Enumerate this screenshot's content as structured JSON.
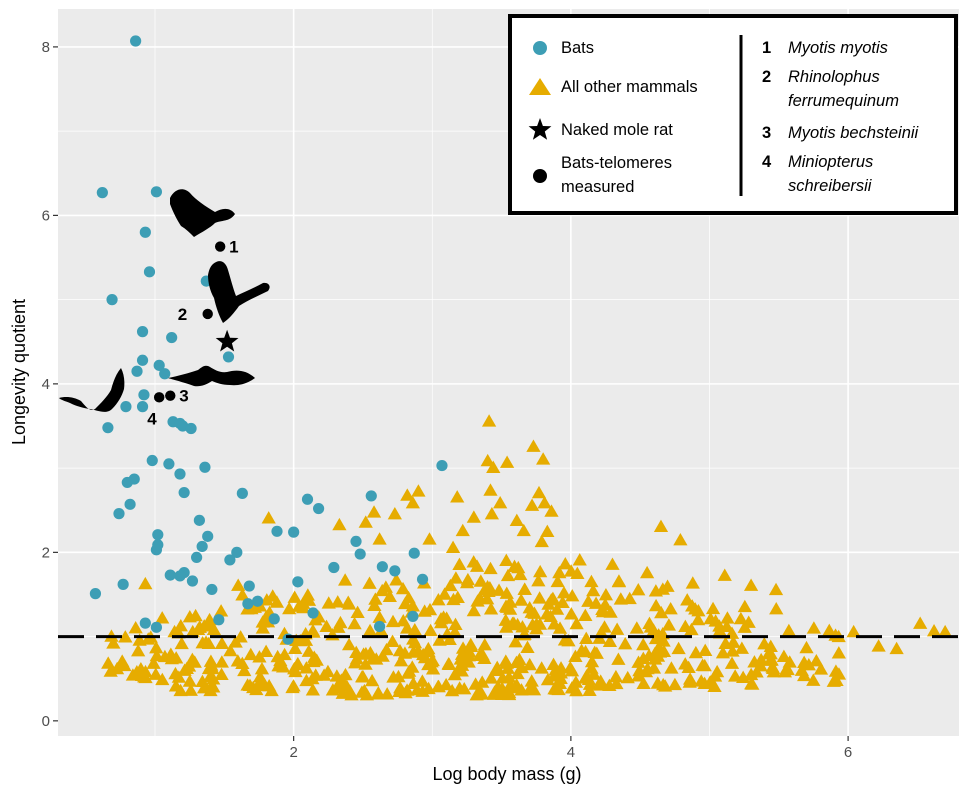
{
  "colors": {
    "panel": "#ebebeb",
    "grid_major": "#ffffff",
    "bats": "#3d9eb5",
    "mammals": "#e6ac00",
    "marker": "#000000"
  },
  "chart_data": {
    "type": "scatter",
    "xlabel": "Log body mass (g)",
    "ylabel": "Longevity quotient",
    "xlim": [
      0.3,
      6.8
    ],
    "ylim": [
      -0.18,
      8.45
    ],
    "x_ticks": [
      2,
      4,
      6
    ],
    "y_ticks": [
      0,
      2,
      4,
      6,
      8
    ],
    "x_tick_labels": [
      "2",
      "4",
      "6"
    ],
    "y_tick_labels": [
      "0",
      "2",
      "4",
      "6",
      "8"
    ],
    "grid": true,
    "reference_line": {
      "y": 1,
      "style": "dashed"
    },
    "legend": {
      "placement": "top-right",
      "entries": [
        {
          "label": "Bats",
          "marker": "circle",
          "color": "#3d9eb5"
        },
        {
          "label": "All other mammals",
          "marker": "triangle",
          "color": "#e6ac00"
        },
        {
          "label": "Naked mole rat",
          "marker": "star",
          "color": "#000000"
        },
        {
          "label": "Bats-telomeres measured",
          "lines": [
            "Bats-telomeres",
            "measured"
          ],
          "marker": "dot",
          "color": "#000000"
        }
      ],
      "species": [
        {
          "num": "1",
          "lines": [
            "Myotis myotis"
          ]
        },
        {
          "num": "2",
          "lines": [
            "Rhinolophus",
            "ferrumequinum"
          ]
        },
        {
          "num": "3",
          "lines": [
            "Myotis bechsteinii"
          ]
        },
        {
          "num": "4",
          "lines": [
            "Miniopterus",
            "schreibersii"
          ]
        }
      ]
    },
    "series": [
      {
        "name": "Bats",
        "marker": "circle",
        "points": [
          [
            0.86,
            8.07
          ],
          [
            0.62,
            6.27
          ],
          [
            1.01,
            6.28
          ],
          [
            0.93,
            5.8
          ],
          [
            0.96,
            5.33
          ],
          [
            0.69,
            5.0
          ],
          [
            0.91,
            4.62
          ],
          [
            1.12,
            4.55
          ],
          [
            0.91,
            4.28
          ],
          [
            1.03,
            4.22
          ],
          [
            0.87,
            4.15
          ],
          [
            1.07,
            4.12
          ],
          [
            1.37,
            5.22
          ],
          [
            1.53,
            4.32
          ],
          [
            0.92,
            3.87
          ],
          [
            1.13,
            3.55
          ],
          [
            1.18,
            3.53
          ],
          [
            1.2,
            3.5
          ],
          [
            1.26,
            3.47
          ],
          [
            0.79,
            3.73
          ],
          [
            0.91,
            3.73
          ],
          [
            0.66,
            3.48
          ],
          [
            0.98,
            3.09
          ],
          [
            1.1,
            3.05
          ],
          [
            1.36,
            3.01
          ],
          [
            1.18,
            2.93
          ],
          [
            0.85,
            2.87
          ],
          [
            0.8,
            2.83
          ],
          [
            1.21,
            2.71
          ],
          [
            1.63,
            2.7
          ],
          [
            0.82,
            2.57
          ],
          [
            0.74,
            2.46
          ],
          [
            1.32,
            2.38
          ],
          [
            1.02,
            2.21
          ],
          [
            1.38,
            2.19
          ],
          [
            1.02,
            2.09
          ],
          [
            1.01,
            2.03
          ],
          [
            1.34,
            2.07
          ],
          [
            1.59,
            2.0
          ],
          [
            1.54,
            1.91
          ],
          [
            1.3,
            1.94
          ],
          [
            1.88,
            2.25
          ],
          [
            2.0,
            2.24
          ],
          [
            2.1,
            2.63
          ],
          [
            2.18,
            2.52
          ],
          [
            1.21,
            1.76
          ],
          [
            1.18,
            1.72
          ],
          [
            1.11,
            1.73
          ],
          [
            1.27,
            1.66
          ],
          [
            1.68,
            1.6
          ],
          [
            1.41,
            1.56
          ],
          [
            0.57,
            1.51
          ],
          [
            0.77,
            1.62
          ],
          [
            2.03,
            1.65
          ],
          [
            1.46,
            1.2
          ],
          [
            0.93,
            1.16
          ],
          [
            1.01,
            1.11
          ],
          [
            1.86,
            1.21
          ],
          [
            2.29,
            1.82
          ],
          [
            2.45,
            2.13
          ],
          [
            2.56,
            2.67
          ],
          [
            2.48,
            1.98
          ],
          [
            2.64,
            1.83
          ],
          [
            2.73,
            1.78
          ],
          [
            2.87,
            1.99
          ],
          [
            2.93,
            1.68
          ],
          [
            2.62,
            1.12
          ],
          [
            3.07,
            3.03
          ],
          [
            1.67,
            1.39
          ],
          [
            1.74,
            1.42
          ],
          [
            1.96,
            0.97
          ],
          [
            2.14,
            1.28
          ],
          [
            2.86,
            1.24
          ]
        ]
      },
      {
        "name": "All other mammals",
        "marker": "triangle",
        "groups": [
          {
            "xmin": 0.62,
            "xmax": 1.0,
            "ymin": 0.45,
            "ymax": 1.1,
            "n": 22
          },
          {
            "xmin": 1.0,
            "xmax": 1.6,
            "ymin": 0.35,
            "ymax": 1.3,
            "n": 55
          },
          {
            "xmin": 1.6,
            "xmax": 2.3,
            "ymin": 0.35,
            "ymax": 1.5,
            "n": 75
          },
          {
            "xmin": 2.3,
            "xmax": 3.0,
            "ymin": 0.3,
            "ymax": 1.7,
            "n": 90
          },
          {
            "xmin": 3.0,
            "xmax": 3.6,
            "ymin": 0.3,
            "ymax": 1.9,
            "n": 95
          },
          {
            "xmin": 3.6,
            "xmax": 4.2,
            "ymin": 0.35,
            "ymax": 2.0,
            "n": 90
          },
          {
            "xmin": 4.2,
            "xmax": 4.9,
            "ymin": 0.4,
            "ymax": 1.7,
            "n": 70
          },
          {
            "xmin": 4.9,
            "xmax": 5.5,
            "ymin": 0.4,
            "ymax": 1.4,
            "n": 50
          },
          {
            "xmin": 5.5,
            "xmax": 5.95,
            "ymin": 0.45,
            "ymax": 1.2,
            "n": 22
          }
        ],
        "points": [
          [
            0.93,
            1.62
          ],
          [
            1.6,
            1.6
          ],
          [
            1.82,
            2.4
          ],
          [
            2.33,
            2.32
          ],
          [
            2.52,
            2.35
          ],
          [
            2.58,
            2.47
          ],
          [
            2.62,
            2.15
          ],
          [
            2.73,
            2.45
          ],
          [
            2.82,
            2.67
          ],
          [
            2.9,
            2.72
          ],
          [
            2.86,
            2.58
          ],
          [
            3.18,
            2.65
          ],
          [
            3.3,
            2.41
          ],
          [
            3.22,
            2.25
          ],
          [
            3.41,
            3.55
          ],
          [
            3.4,
            3.08
          ],
          [
            3.44,
            3.0
          ],
          [
            3.54,
            3.06
          ],
          [
            3.42,
            2.73
          ],
          [
            3.49,
            2.58
          ],
          [
            3.43,
            2.45
          ],
          [
            3.61,
            2.37
          ],
          [
            3.73,
            3.25
          ],
          [
            3.8,
            3.1
          ],
          [
            3.77,
            2.7
          ],
          [
            3.72,
            2.55
          ],
          [
            3.81,
            2.58
          ],
          [
            3.86,
            2.48
          ],
          [
            3.66,
            2.25
          ],
          [
            3.83,
            2.24
          ],
          [
            3.79,
            2.12
          ],
          [
            4.65,
            2.3
          ],
          [
            4.79,
            2.14
          ],
          [
            5.11,
            1.72
          ],
          [
            5.48,
            1.55
          ],
          [
            6.04,
            1.05
          ],
          [
            6.22,
            0.88
          ],
          [
            6.35,
            0.85
          ],
          [
            6.52,
            1.15
          ],
          [
            6.62,
            1.06
          ],
          [
            6.7,
            1.05
          ],
          [
            2.98,
            2.15
          ],
          [
            3.15,
            2.05
          ],
          [
            4.3,
            1.85
          ],
          [
            4.55,
            1.75
          ],
          [
            5.3,
            1.6
          ]
        ]
      },
      {
        "name": "Naked mole rat",
        "marker": "star",
        "points": [
          [
            1.52,
            4.5
          ]
        ]
      },
      {
        "name": "Bats-telomeres measured",
        "marker": "dot",
        "points": [
          {
            "label": "1",
            "x": 1.47,
            "y": 5.63
          },
          {
            "label": "2",
            "x": 1.38,
            "y": 4.83
          },
          {
            "label": "3",
            "x": 1.11,
            "y": 3.86
          },
          {
            "label": "4",
            "x": 1.03,
            "y": 3.84
          }
        ]
      }
    ]
  }
}
